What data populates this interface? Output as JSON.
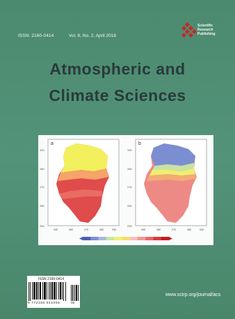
{
  "header": {
    "issn": "ISSN: 2160-0414",
    "volume": "Vol. 6, No. 2, April 2016",
    "publisher": [
      "Scientific",
      "Research",
      "Publishing"
    ]
  },
  "title": {
    "line1": "Atmospheric and",
    "line2": "Climate Sciences"
  },
  "figure": {
    "panel_a_label": "a",
    "panel_b_label": "b",
    "y_ticks": [
      "30N",
      "28N",
      "27N",
      "26N",
      "25N"
    ],
    "x_ticks": [
      "95E",
      "96E",
      "97E",
      "98E",
      "99E"
    ],
    "colorbar_colors": [
      "#4b5fb5",
      "#7a8fd6",
      "#a9b7e6",
      "#c6e6a2",
      "#eef070",
      "#f4de6a",
      "#f6c0b8",
      "#f09a94",
      "#e66868",
      "#d83a3a",
      "#c21f1f"
    ]
  },
  "barcode": {
    "issn": "ISSN 2160-0414",
    "digits": "9 772160 041005",
    "addon": "02"
  },
  "footer": {
    "url": "www.scirp.org/journal/acs"
  }
}
